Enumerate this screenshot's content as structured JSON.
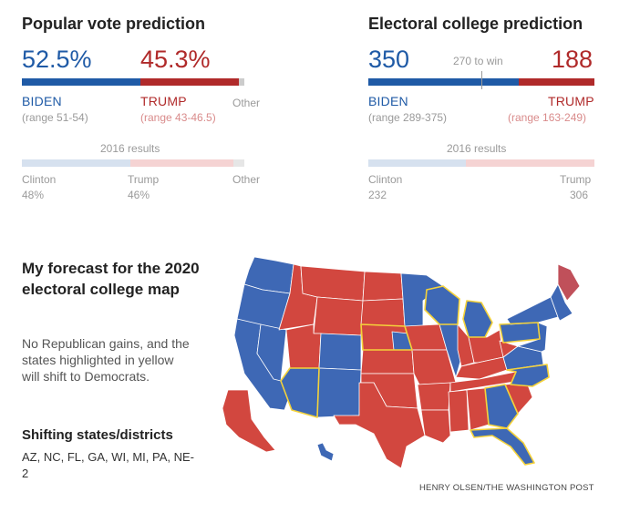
{
  "chart_data": [
    {
      "type": "bar",
      "title": "Popular vote prediction",
      "orientation": "horizontal-stacked",
      "series": [
        {
          "name": "BIDEN",
          "value": 52.5,
          "label": "52.5%",
          "range": "(range 51-54)"
        },
        {
          "name": "TRUMP",
          "value": 45.3,
          "label": "45.3%",
          "range": "(range 43-46.5)"
        },
        {
          "name": "Other",
          "value": 2.2
        }
      ],
      "results_2016": {
        "label": "2016 results",
        "series": [
          {
            "name": "Clinton",
            "value": 48,
            "label": "48%"
          },
          {
            "name": "Trump",
            "value": 46,
            "label": "46%"
          },
          {
            "name": "Other",
            "value": 6
          }
        ]
      },
      "xlim": [
        0,
        100
      ]
    },
    {
      "type": "bar",
      "title": "Electoral college prediction",
      "orientation": "horizontal-stacked",
      "threshold": {
        "value": 270,
        "label": "270 to win"
      },
      "series": [
        {
          "name": "BIDEN",
          "value": 350,
          "label": "350",
          "range": "(range 289-375)"
        },
        {
          "name": "TRUMP",
          "value": 188,
          "label": "188",
          "range": "(range 163-249)"
        }
      ],
      "results_2016": {
        "label": "2016 results",
        "series": [
          {
            "name": "Clinton",
            "value": 232,
            "label": "232"
          },
          {
            "name": "Trump",
            "value": 306,
            "label": "306"
          }
        ]
      },
      "xlim": [
        0,
        538
      ]
    }
  ],
  "map": {
    "title": "My forecast for the 2020 electoral college map",
    "description": "No Republican gains, and the states highlighted in yellow will shift to Democrats.",
    "shifting_title": "Shifting states/districts",
    "shifting_list": "AZ, NC, FL, GA, WI, MI, PA, NE-2",
    "shifting_states": [
      "AZ",
      "NC",
      "FL",
      "GA",
      "WI",
      "MI",
      "PA",
      "NE-2"
    ]
  },
  "credit": "HENRY OLSEN/THE WASHINGTON POST",
  "colors": {
    "dem": "#1f5aa6",
    "rep": "#c0392b",
    "map_dem": "#3e68b5",
    "map_rep": "#d2473f",
    "highlight": "#f4d23a",
    "dem_light": "#d6e1ef",
    "rep_light": "#f5d3d3",
    "other": "#cccccc"
  }
}
